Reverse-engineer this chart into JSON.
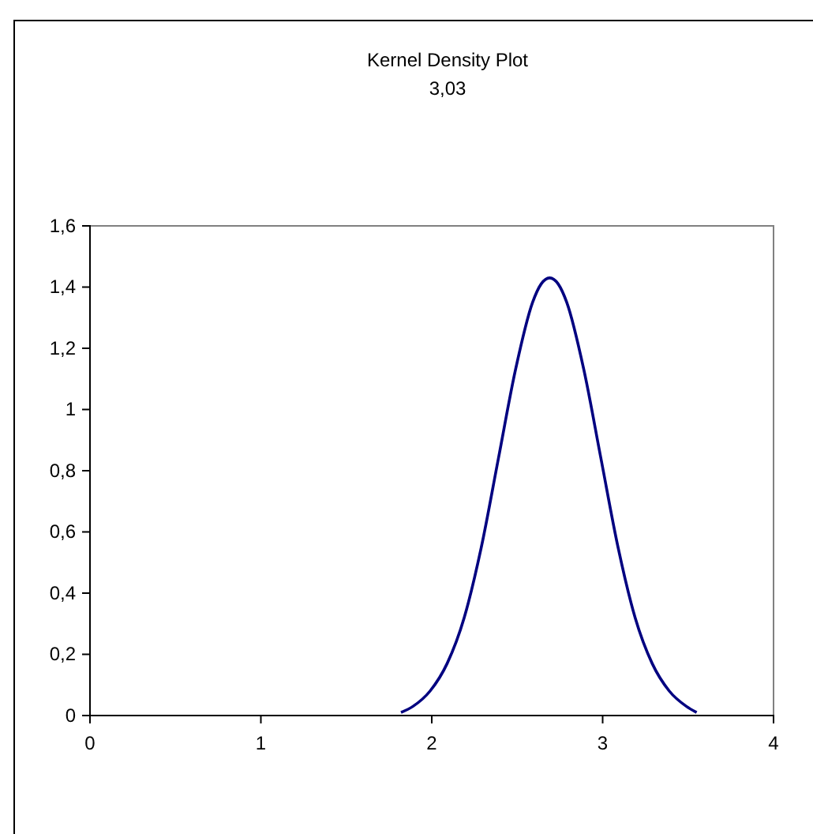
{
  "chart_data": {
    "type": "line",
    "title": "Kernel Density Plot",
    "subtitle": "3,03",
    "xlim": [
      0,
      4
    ],
    "xticks": [
      0,
      1,
      2,
      3,
      4
    ],
    "ylim": [
      0,
      1.6
    ],
    "yticks": [
      0,
      {
        "value": 0.2,
        "label": "0,2"
      },
      {
        "value": 0.4,
        "label": "0,4"
      },
      {
        "value": 0.6,
        "label": "0,6"
      },
      {
        "value": 0.8,
        "label": "0,8"
      },
      1,
      {
        "value": 1.2,
        "label": "1,2"
      },
      {
        "value": 1.4,
        "label": "1,4"
      },
      {
        "value": 1.6,
        "label": "1,6"
      }
    ],
    "grid": false,
    "marker": "none",
    "line_style": "solid",
    "series": [
      {
        "color": "#000080",
        "x": [
          1.82,
          1.89,
          1.99,
          2.09,
          2.19,
          2.29,
          2.39,
          2.49,
          2.59,
          2.64,
          2.69,
          2.74,
          2.79,
          2.89,
          2.99,
          3.09,
          3.19,
          3.29,
          3.39,
          3.49,
          3.55
        ],
        "values": [
          0.01,
          0.03,
          0.08,
          0.17,
          0.32,
          0.55,
          0.84,
          1.13,
          1.35,
          1.41,
          1.43,
          1.41,
          1.35,
          1.13,
          0.84,
          0.55,
          0.32,
          0.17,
          0.08,
          0.03,
          0.01
        ]
      }
    ]
  }
}
